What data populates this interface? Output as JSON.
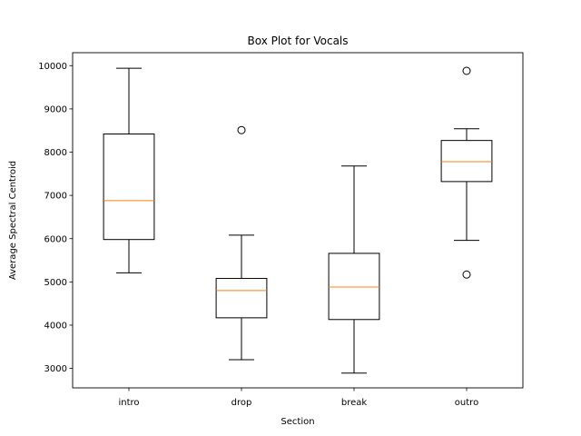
{
  "chart_data": {
    "type": "box",
    "title": "Box Plot for Vocals",
    "xlabel": "Section",
    "ylabel": "Average Spectral Centroid",
    "categories": [
      "intro",
      "drop",
      "break",
      "outro"
    ],
    "ylim": [
      2550,
      10300
    ],
    "yticks": [
      3000,
      4000,
      5000,
      6000,
      7000,
      8000,
      9000,
      10000
    ],
    "grid": false,
    "boxes": [
      {
        "name": "intro",
        "whisker_low": 5210,
        "q1": 5980,
        "median": 6880,
        "q3": 8420,
        "whisker_high": 9940,
        "outliers": []
      },
      {
        "name": "drop",
        "whisker_low": 3200,
        "q1": 4170,
        "median": 4800,
        "q3": 5080,
        "whisker_high": 6080,
        "outliers": [
          8510
        ]
      },
      {
        "name": "break",
        "whisker_low": 2890,
        "q1": 4130,
        "median": 4880,
        "q3": 5660,
        "whisker_high": 7680,
        "outliers": []
      },
      {
        "name": "outro",
        "whisker_low": 5960,
        "q1": 7320,
        "median": 7780,
        "q3": 8270,
        "whisker_high": 8540,
        "outliers": [
          9880,
          5170
        ]
      }
    ],
    "colors": {
      "box": "#000000",
      "median": "#ff7f0e",
      "background": "#ffffff"
    }
  }
}
